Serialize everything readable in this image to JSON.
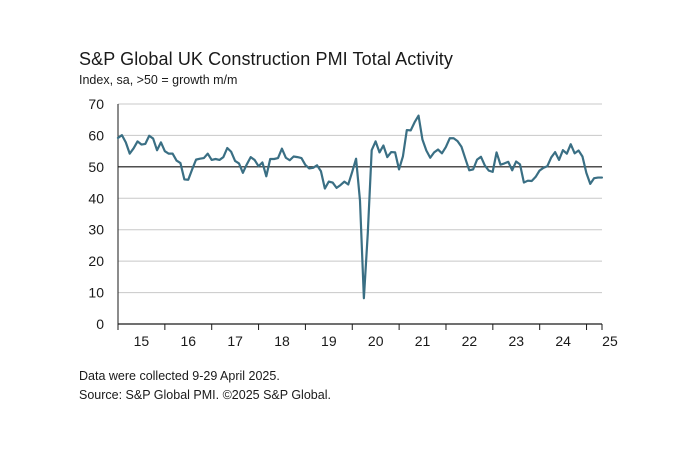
{
  "chart_data": {
    "type": "line",
    "title": "S&P Global UK Construction PMI Total Activity",
    "subtitle": "Index, sa, >50 = growth m/m",
    "xlabel": "",
    "ylabel": "",
    "ylim": [
      0,
      70
    ],
    "yticks": [
      0,
      10,
      20,
      30,
      40,
      50,
      60,
      70
    ],
    "xtick_labels": [
      "15",
      "16",
      "17",
      "18",
      "19",
      "20",
      "21",
      "22",
      "23",
      "24",
      "25"
    ],
    "xtick_positions": [
      2015,
      2016,
      2017,
      2018,
      2019,
      2020,
      2021,
      2022,
      2023,
      2024,
      2025
    ],
    "x_range": [
      2015.0,
      2025.33
    ],
    "reference_line": 50,
    "line_color": "#3a6f84",
    "series": [
      {
        "name": "UK Construction PMI Total Activity",
        "x_start": 2015.0,
        "step": 0.0833,
        "values": [
          59.2,
          60.1,
          57.8,
          54.2,
          55.9,
          58.1,
          57.1,
          57.3,
          59.9,
          59.0,
          55.3,
          57.8,
          55.0,
          54.2,
          54.2,
          52.0,
          51.2,
          46.0,
          45.9,
          49.2,
          52.3,
          52.6,
          52.8,
          54.2,
          52.2,
          52.5,
          52.2,
          53.1,
          56.0,
          54.8,
          51.9,
          51.1,
          48.1,
          50.8,
          53.1,
          52.2,
          50.2,
          51.4,
          47.0,
          52.5,
          52.5,
          52.8,
          55.8,
          52.9,
          52.1,
          53.3,
          53.1,
          52.8,
          50.6,
          49.5,
          49.7,
          50.5,
          48.6,
          43.1,
          45.3,
          45.0,
          43.3,
          44.2,
          45.3,
          44.4,
          48.4,
          52.6,
          39.3,
          8.2,
          28.9,
          55.3,
          58.1,
          54.6,
          56.8,
          53.1,
          54.7,
          54.6,
          49.2,
          53.3,
          61.7,
          61.6,
          64.2,
          66.3,
          58.7,
          55.2,
          52.9,
          54.6,
          55.5,
          54.3,
          56.3,
          59.1,
          59.1,
          58.2,
          56.4,
          52.6,
          48.9,
          49.2,
          52.3,
          53.2,
          50.4,
          48.8,
          48.4,
          54.6,
          50.7,
          51.1,
          51.6,
          48.9,
          51.7,
          50.8,
          45.0,
          45.6,
          45.5,
          46.8,
          48.8,
          49.7,
          50.2,
          53.0,
          54.7,
          52.2,
          55.3,
          54.2,
          57.2,
          54.3,
          55.2,
          53.3,
          48.1,
          44.6,
          46.4,
          46.6,
          46.6
        ]
      }
    ]
  },
  "footnotes": {
    "collected": "Data were collected 9-29 April 2025.",
    "source": "Source: S&P Global PMI. ©2025 S&P Global."
  }
}
